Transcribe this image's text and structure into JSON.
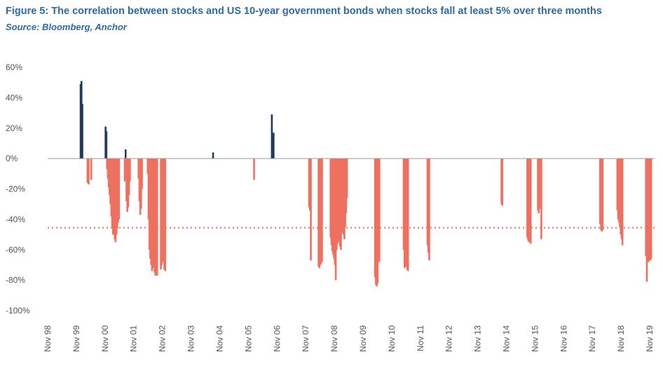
{
  "title": "Figure 5: The correlation between stocks and US 10-year government bonds when stocks fall at least 5% over three months",
  "source": "Source: Bloomberg, Anchor",
  "chart_data": {
    "type": "bar",
    "ylim": [
      -1.0,
      0.6
    ],
    "yticks": [
      {
        "value": 0.6,
        "label": "60%"
      },
      {
        "value": 0.4,
        "label": "40%"
      },
      {
        "value": 0.2,
        "label": "20%"
      },
      {
        "value": 0.0,
        "label": "0%"
      },
      {
        "value": -0.2,
        "label": "-20%"
      },
      {
        "value": -0.4,
        "label": "-40%"
      },
      {
        "value": -0.6,
        "label": "-60%"
      },
      {
        "value": -0.8,
        "label": "-80%"
      },
      {
        "value": -1.0,
        "label": "-100%"
      }
    ],
    "xlim": [
      1998.83,
      2020.0
    ],
    "xticks": [
      {
        "value": 1998.83,
        "label": "Nov 98"
      },
      {
        "value": 1999.83,
        "label": "Nov 99"
      },
      {
        "value": 2000.83,
        "label": "Nov 00"
      },
      {
        "value": 2001.83,
        "label": "Nov 01"
      },
      {
        "value": 2002.83,
        "label": "Nov 02"
      },
      {
        "value": 2003.83,
        "label": "Nov 03"
      },
      {
        "value": 2004.83,
        "label": "Nov 04"
      },
      {
        "value": 2005.83,
        "label": "Nov 05"
      },
      {
        "value": 2006.83,
        "label": "Nov 06"
      },
      {
        "value": 2007.83,
        "label": "Nov 07"
      },
      {
        "value": 2008.83,
        "label": "Nov 08"
      },
      {
        "value": 2009.83,
        "label": "Nov 09"
      },
      {
        "value": 2010.83,
        "label": "Nov 10"
      },
      {
        "value": 2011.83,
        "label": "Nov 11"
      },
      {
        "value": 2012.83,
        "label": "Nov 12"
      },
      {
        "value": 2013.83,
        "label": "Nov 13"
      },
      {
        "value": 2014.83,
        "label": "Nov 14"
      },
      {
        "value": 2015.83,
        "label": "Nov 15"
      },
      {
        "value": 2016.83,
        "label": "Nov 16"
      },
      {
        "value": 2017.83,
        "label": "Nov 17"
      },
      {
        "value": 2018.83,
        "label": "Nov 18"
      },
      {
        "value": 2019.83,
        "label": "Nov 19"
      }
    ],
    "reference_line": {
      "value": -0.455,
      "style": "dotted"
    },
    "colors": {
      "positive": "#1f3c5a",
      "negative": "#f07060",
      "title": "#2e6aa0",
      "axis": "#999999",
      "reference": "#f07060"
    },
    "bars": [
      [
        1999.98,
        0.49
      ],
      [
        2000.01,
        0.51
      ],
      [
        2000.04,
        0.36
      ],
      [
        2000.22,
        -0.16
      ],
      [
        2000.26,
        -0.17
      ],
      [
        2000.35,
        -0.14
      ],
      [
        2000.85,
        0.21
      ],
      [
        2000.88,
        0.18
      ],
      [
        2000.9,
        -0.07
      ],
      [
        2000.93,
        -0.13
      ],
      [
        2000.96,
        -0.19
      ],
      [
        2000.99,
        -0.24
      ],
      [
        2001.02,
        -0.3
      ],
      [
        2001.05,
        -0.38
      ],
      [
        2001.08,
        -0.45
      ],
      [
        2001.11,
        -0.5
      ],
      [
        2001.14,
        -0.46
      ],
      [
        2001.17,
        -0.53
      ],
      [
        2001.2,
        -0.55
      ],
      [
        2001.23,
        -0.5
      ],
      [
        2001.26,
        -0.46
      ],
      [
        2001.29,
        -0.42
      ],
      [
        2001.32,
        -0.4
      ],
      [
        2001.52,
        -0.15
      ],
      [
        2001.55,
        0.06
      ],
      [
        2001.58,
        -0.28
      ],
      [
        2001.61,
        -0.35
      ],
      [
        2001.64,
        -0.32
      ],
      [
        2001.67,
        -0.24
      ],
      [
        2001.7,
        -0.15
      ],
      [
        2002.0,
        -0.13
      ],
      [
        2002.03,
        -0.28
      ],
      [
        2002.06,
        -0.37
      ],
      [
        2002.09,
        -0.33
      ],
      [
        2002.12,
        -0.2
      ],
      [
        2002.32,
        -0.1
      ],
      [
        2002.35,
        -0.4
      ],
      [
        2002.38,
        -0.6
      ],
      [
        2002.41,
        -0.66
      ],
      [
        2002.44,
        -0.7
      ],
      [
        2002.47,
        -0.74
      ],
      [
        2002.5,
        -0.72
      ],
      [
        2002.53,
        -0.69
      ],
      [
        2002.56,
        -0.75
      ],
      [
        2002.59,
        -0.77
      ],
      [
        2002.62,
        -0.72
      ],
      [
        2002.65,
        -0.77
      ],
      [
        2002.78,
        -0.73
      ],
      [
        2002.81,
        -0.7
      ],
      [
        2002.84,
        -0.66
      ],
      [
        2002.87,
        -0.68
      ],
      [
        2002.9,
        -0.73
      ],
      [
        2002.93,
        -0.74
      ],
      [
        2004.6,
        0.04
      ],
      [
        2006.03,
        -0.14
      ],
      [
        2006.65,
        0.29
      ],
      [
        2006.68,
        0.14
      ],
      [
        2006.71,
        0.17
      ],
      [
        2007.95,
        -0.32
      ],
      [
        2007.98,
        -0.34
      ],
      [
        2008.01,
        -0.67
      ],
      [
        2008.28,
        -0.71
      ],
      [
        2008.31,
        -0.72
      ],
      [
        2008.34,
        -0.7
      ],
      [
        2008.37,
        -0.69
      ],
      [
        2008.4,
        -0.68
      ],
      [
        2008.7,
        -0.52
      ],
      [
        2008.73,
        -0.57
      ],
      [
        2008.76,
        -0.61
      ],
      [
        2008.79,
        -0.63
      ],
      [
        2008.82,
        -0.66
      ],
      [
        2008.85,
        -0.7
      ],
      [
        2008.88,
        -0.8
      ],
      [
        2008.91,
        -0.6
      ],
      [
        2008.94,
        -0.56
      ],
      [
        2008.97,
        -0.55
      ],
      [
        2009.0,
        -0.52
      ],
      [
        2009.03,
        -0.58
      ],
      [
        2009.06,
        -0.6
      ],
      [
        2009.09,
        -0.49
      ],
      [
        2009.12,
        -0.45
      ],
      [
        2009.15,
        -0.5
      ],
      [
        2009.18,
        -0.53
      ],
      [
        2009.21,
        -0.45
      ],
      [
        2009.24,
        -0.36
      ],
      [
        2009.27,
        -0.26
      ],
      [
        2010.25,
        -0.78
      ],
      [
        2010.28,
        -0.83
      ],
      [
        2010.31,
        -0.84
      ],
      [
        2010.34,
        -0.82
      ],
      [
        2010.4,
        -0.68
      ],
      [
        2011.25,
        -0.6
      ],
      [
        2011.28,
        -0.72
      ],
      [
        2011.31,
        -0.7
      ],
      [
        2011.34,
        -0.71
      ],
      [
        2011.37,
        -0.73
      ],
      [
        2011.4,
        -0.74
      ],
      [
        2012.08,
        -0.57
      ],
      [
        2012.11,
        -0.62
      ],
      [
        2012.14,
        -0.67
      ],
      [
        2014.66,
        -0.3
      ],
      [
        2014.69,
        -0.31
      ],
      [
        2015.56,
        -0.52
      ],
      [
        2015.59,
        -0.54
      ],
      [
        2015.62,
        -0.55
      ],
      [
        2015.65,
        -0.55
      ],
      [
        2015.68,
        -0.56
      ],
      [
        2015.93,
        -0.34
      ],
      [
        2015.96,
        -0.36
      ],
      [
        2015.99,
        -0.33
      ],
      [
        2016.02,
        -0.33
      ],
      [
        2016.05,
        -0.53
      ],
      [
        2018.1,
        -0.43
      ],
      [
        2018.13,
        -0.47
      ],
      [
        2018.16,
        -0.48
      ],
      [
        2018.19,
        -0.47
      ],
      [
        2018.7,
        -0.34
      ],
      [
        2018.73,
        -0.4
      ],
      [
        2018.76,
        -0.42
      ],
      [
        2018.79,
        -0.45
      ],
      [
        2018.82,
        -0.5
      ],
      [
        2018.85,
        -0.53
      ],
      [
        2018.88,
        -0.57
      ],
      [
        2019.7,
        -0.64
      ],
      [
        2019.73,
        -0.81
      ],
      [
        2019.76,
        -0.68
      ],
      [
        2019.79,
        -0.68
      ],
      [
        2019.82,
        -0.67
      ],
      [
        2019.85,
        -0.67
      ],
      [
        2019.88,
        -0.66
      ]
    ]
  }
}
